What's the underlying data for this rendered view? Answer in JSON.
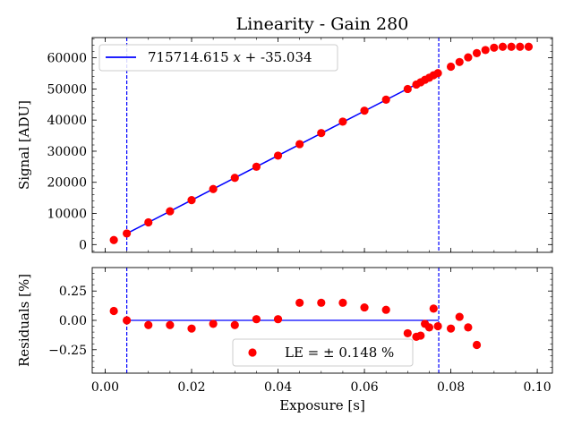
{
  "figure": {
    "title": "Linearity - Gain 280",
    "colors": {
      "points": "#ff0000",
      "fit_line": "#0000ff",
      "limits": "#0000ff",
      "axes": "#000000"
    }
  },
  "chart_data": [
    {
      "type": "scatter",
      "panel": "top",
      "title": "Linearity - Gain 280",
      "xlabel": "",
      "ylabel": "Signal [ADU]",
      "xlim": [
        -0.003,
        0.1035
      ],
      "ylim": [
        -2500,
        66500
      ],
      "yticks": [
        0,
        10000,
        20000,
        30000,
        40000,
        50000,
        60000
      ],
      "ytick_labels": [
        "0",
        "10000",
        "20000",
        "30000",
        "40000",
        "50000",
        "60000"
      ],
      "grid": false,
      "legend": {
        "position": "top-left",
        "entries": [
          {
            "label": "715714.615 x + -35.034",
            "marker": "line",
            "color": "#0000ff"
          }
        ]
      },
      "limit_lines": [
        0.005,
        0.0772
      ],
      "fit": {
        "slope": 715714.615,
        "intercept": -35.034,
        "x_range": [
          0.005,
          0.0772
        ],
        "equation": "715714.615 x + -35.034",
        "equation_math": "x"
      },
      "series": [
        {
          "name": "data",
          "color": "#ff0000",
          "points": [
            [
              0.002,
              1450
            ],
            [
              0.005,
              3560
            ],
            [
              0.01,
              7140
            ],
            [
              0.015,
              10700
            ],
            [
              0.02,
              14280
            ],
            [
              0.025,
              17850
            ],
            [
              0.03,
              21440
            ],
            [
              0.035,
              25010
            ],
            [
              0.04,
              28570
            ],
            [
              0.045,
              32270
            ],
            [
              0.05,
              35830
            ],
            [
              0.055,
              39500
            ],
            [
              0.06,
              43020
            ],
            [
              0.065,
              46550
            ],
            [
              0.07,
              49980
            ],
            [
              0.072,
              51420
            ],
            [
              0.073,
              52140
            ],
            [
              0.074,
              52930
            ],
            [
              0.075,
              53590
            ],
            [
              0.076,
              54410
            ],
            [
              0.077,
              55080
            ],
            [
              0.08,
              57150
            ],
            [
              0.082,
              58650
            ],
            [
              0.084,
              60150
            ],
            [
              0.086,
              61500
            ],
            [
              0.088,
              62500
            ],
            [
              0.09,
              63250
            ],
            [
              0.092,
              63550
            ],
            [
              0.094,
              63550
            ],
            [
              0.096,
              63550
            ],
            [
              0.098,
              63550
            ]
          ]
        }
      ]
    },
    {
      "type": "scatter",
      "panel": "bottom",
      "title": "",
      "xlabel": "Exposure [s]",
      "ylabel": "Residuals [%]",
      "xlim": [
        -0.003,
        0.1035
      ],
      "ylim": [
        -0.45,
        0.45
      ],
      "xticks": [
        0.0,
        0.02,
        0.04,
        0.06,
        0.08,
        0.1
      ],
      "xtick_labels": [
        "0.00",
        "0.02",
        "0.04",
        "0.06",
        "0.08",
        "0.10"
      ],
      "yticks": [
        -0.25,
        0.0,
        0.25
      ],
      "ytick_labels": [
        "−0.25",
        "0.00",
        "0.25"
      ],
      "grid": false,
      "legend": {
        "position": "bottom-center",
        "entries": [
          {
            "label": "LE = ± 0.148 %",
            "marker": "circle",
            "color": "#ff0000"
          }
        ]
      },
      "limit_lines": [
        0.005,
        0.0772
      ],
      "zero_line": {
        "x_range": [
          0.005,
          0.0772
        ],
        "y": 0
      },
      "series": [
        {
          "name": "residuals",
          "color": "#ff0000",
          "points": [
            [
              0.002,
              0.08
            ],
            [
              0.005,
              0.0
            ],
            [
              0.01,
              -0.04
            ],
            [
              0.015,
              -0.04
            ],
            [
              0.02,
              -0.07
            ],
            [
              0.025,
              -0.03
            ],
            [
              0.03,
              -0.04
            ],
            [
              0.035,
              0.01
            ],
            [
              0.04,
              0.01
            ],
            [
              0.045,
              0.15
            ],
            [
              0.05,
              0.15
            ],
            [
              0.055,
              0.15
            ],
            [
              0.06,
              0.11
            ],
            [
              0.065,
              0.09
            ],
            [
              0.07,
              -0.11
            ],
            [
              0.072,
              -0.14
            ],
            [
              0.073,
              -0.13
            ],
            [
              0.074,
              -0.03
            ],
            [
              0.075,
              -0.06
            ],
            [
              0.076,
              0.1
            ],
            [
              0.077,
              -0.05
            ],
            [
              0.08,
              -0.07
            ],
            [
              0.082,
              0.03
            ],
            [
              0.084,
              -0.06
            ],
            [
              0.086,
              -0.21
            ]
          ]
        }
      ]
    }
  ]
}
